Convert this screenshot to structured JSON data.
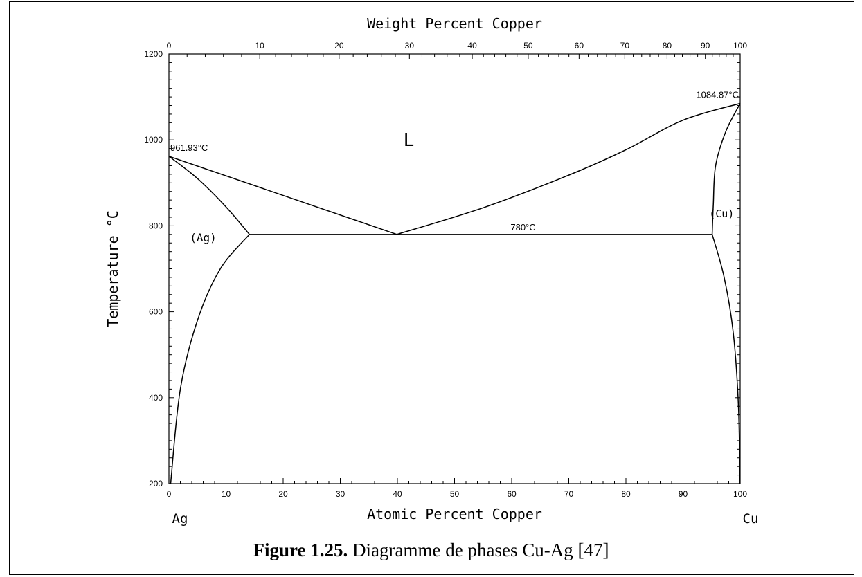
{
  "chart_data": {
    "type": "line",
    "title": "Weight Percent Copper",
    "xlabel": "Atomic Percent Copper",
    "ylabel": "Temperature °C",
    "xlim": [
      0,
      100
    ],
    "ylim": [
      200,
      1200
    ],
    "x_ticks": [
      0,
      10,
      20,
      30,
      40,
      50,
      60,
      70,
      80,
      90,
      100
    ],
    "y_ticks": [
      200,
      400,
      600,
      800,
      1000,
      1200
    ],
    "top_axis_label": "Weight Percent Copper",
    "top_ticks": [
      {
        "label": "0",
        "at": 0
      },
      {
        "label": "10",
        "at": 15.9
      },
      {
        "label": "20",
        "at": 29.8
      },
      {
        "label": "30",
        "at": 42.1
      },
      {
        "label": "40",
        "at": 53.1
      },
      {
        "label": "50",
        "at": 62.9
      },
      {
        "label": "60",
        "at": 71.8
      },
      {
        "label": "70",
        "at": 79.8
      },
      {
        "label": "80",
        "at": 87.2
      },
      {
        "label": "90",
        "at": 93.9
      },
      {
        "label": "100",
        "at": 100
      }
    ],
    "end_labels": {
      "left": "Ag",
      "right": "Cu"
    },
    "series": [
      {
        "values": [
          [
            0,
            961.93
          ],
          [
            39.9,
            780
          ]
        ]
      },
      {
        "values": [
          [
            39.9,
            780
          ],
          [
            55,
            842
          ],
          [
            70,
            918
          ],
          [
            80,
            977
          ],
          [
            90,
            1046
          ],
          [
            100,
            1084.87
          ]
        ]
      },
      {
        "values": [
          [
            0,
            961.93
          ],
          [
            5,
            910
          ],
          [
            10,
            844
          ],
          [
            14.1,
            780
          ]
        ]
      },
      {
        "values": [
          [
            14.1,
            780
          ],
          [
            9,
            700
          ],
          [
            5,
            580
          ],
          [
            2,
            420
          ],
          [
            0.3,
            200
          ]
        ]
      },
      {
        "values": [
          [
            14.1,
            780
          ],
          [
            95.1,
            780
          ]
        ]
      },
      {
        "values": [
          [
            100,
            1084.87
          ],
          [
            97.5,
            1020
          ],
          [
            95.7,
            940
          ],
          [
            95.3,
            850
          ],
          [
            95.1,
            780
          ]
        ]
      },
      {
        "values": [
          [
            95.1,
            780
          ],
          [
            97.2,
            680
          ],
          [
            98.8,
            550
          ],
          [
            99.7,
            380
          ],
          [
            99.95,
            200
          ]
        ]
      }
    ],
    "annotations": [
      {
        "text": "961.93°C",
        "x": 0,
        "y": 961.93
      },
      {
        "text": "1084.87°C",
        "x": 100,
        "y": 1084.87
      },
      {
        "text": "780°C",
        "x": 62,
        "y": 780
      },
      {
        "text": "L",
        "x": 42,
        "y": 1000
      },
      {
        "text": "(Ag)",
        "x": 6,
        "y": 780
      },
      {
        "text": "(Cu)",
        "x": 97,
        "y": 830
      }
    ],
    "grid": false
  },
  "caption": {
    "label": "Figure 1.25.",
    "text": " Diagramme de phases Cu-Ag [47]"
  }
}
